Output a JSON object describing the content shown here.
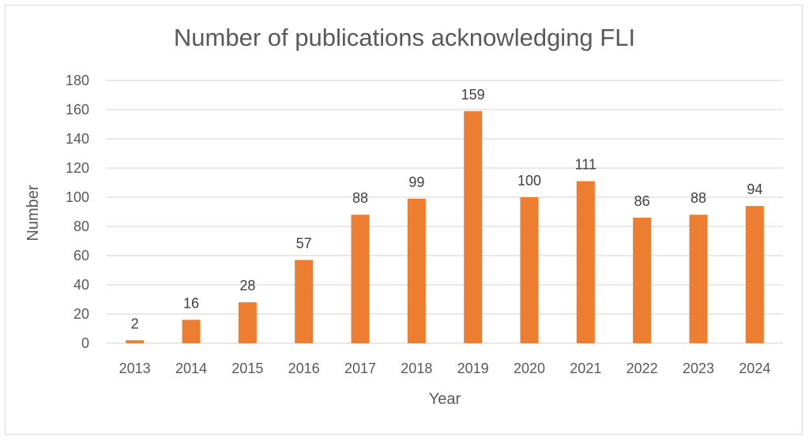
{
  "chart_data": {
    "type": "bar",
    "title": "Number of publications acknowledging FLI",
    "xlabel": "Year",
    "ylabel": "Number",
    "categories": [
      "2013",
      "2014",
      "2015",
      "2016",
      "2017",
      "2018",
      "2019",
      "2020",
      "2021",
      "2022",
      "2023",
      "2024"
    ],
    "values": [
      2,
      16,
      28,
      57,
      88,
      99,
      159,
      100,
      111,
      86,
      88,
      94
    ],
    "ylim": [
      0,
      180
    ],
    "yticks": [
      0,
      20,
      40,
      60,
      80,
      100,
      120,
      140,
      160,
      180
    ],
    "grid": true,
    "legend": "none",
    "bar_color": "#ED7D31",
    "grid_color": "#d9d9d9"
  }
}
